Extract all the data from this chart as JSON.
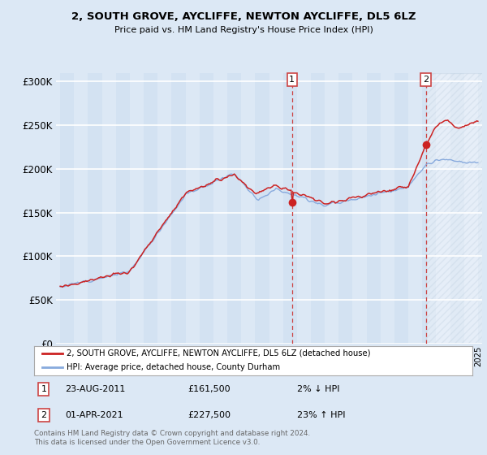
{
  "title": "2, SOUTH GROVE, AYCLIFFE, NEWTON AYCLIFFE, DL5 6LZ",
  "subtitle": "Price paid vs. HM Land Registry's House Price Index (HPI)",
  "ylim": [
    0,
    310000
  ],
  "yticks": [
    0,
    50000,
    100000,
    150000,
    200000,
    250000,
    300000
  ],
  "background_color": "#dce8f5",
  "plot_bg_color": "#dce8f5",
  "grid_color": "#ffffff",
  "legend_entry1": "2, SOUTH GROVE, AYCLIFFE, NEWTON AYCLIFFE, DL5 6LZ (detached house)",
  "legend_entry2": "HPI: Average price, detached house, County Durham",
  "line1_color": "#cc2222",
  "line2_color": "#88aadd",
  "point1_date": "23-AUG-2011",
  "point1_price": 161500,
  "point1_pct": "2% ↓ HPI",
  "point2_date": "01-APR-2021",
  "point2_price": 227500,
  "point2_pct": "23% ↑ HPI",
  "footnote": "Contains HM Land Registry data © Crown copyright and database right 2024.\nThis data is licensed under the Open Government Licence v3.0.",
  "point1_x": 2011.65,
  "point2_x": 2021.25,
  "vline1_x": 2011.65,
  "vline2_x": 2021.25,
  "marker_color": "#cc2222",
  "marker_size": 7,
  "xmin": 1995,
  "xmax": 2025
}
